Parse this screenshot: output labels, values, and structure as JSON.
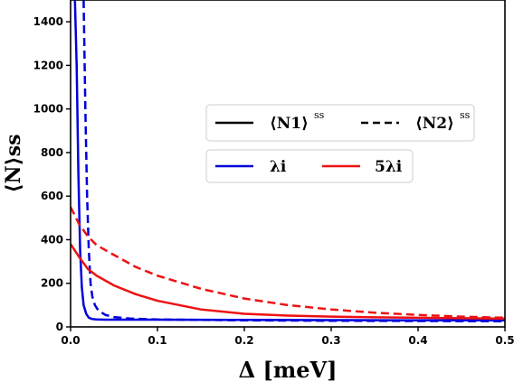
{
  "chart_data": {
    "type": "line",
    "title": "",
    "xlabel": "Δ [meV]",
    "ylabel": "⟨N⟩ss",
    "xlim": [
      0,
      0.5
    ],
    "ylim": [
      0,
      1500
    ],
    "xticks": [
      "0.0",
      "0.1",
      "0.2",
      "0.3",
      "0.4",
      "0.5"
    ],
    "yticks": [
      "0",
      "200",
      "400",
      "600",
      "800",
      "1000",
      "1200",
      "1400"
    ],
    "grid": false,
    "legend_placement": "center-right",
    "legend_style_box": {
      "entries": [
        {
          "label": "⟨N1⟩",
          "sup": "ss",
          "style": "solid"
        },
        {
          "label": "⟨N2⟩",
          "sup": "ss",
          "style": "dashed"
        }
      ]
    },
    "legend_color_box": {
      "entries": [
        {
          "label": "λi",
          "color": "#0000dd"
        },
        {
          "label": "5λi",
          "color": "#ee1111"
        }
      ]
    },
    "series": [
      {
        "quantity": "N1",
        "rate": "λi",
        "color": "#0000dd",
        "dash": "solid",
        "x": [
          0.005,
          0.007,
          0.009,
          0.011,
          0.013,
          0.015,
          0.018,
          0.021,
          0.025,
          0.03,
          0.04,
          0.05,
          0.1,
          0.2,
          0.3,
          0.4,
          0.5
        ],
        "y": [
          1500,
          1200,
          700,
          350,
          180,
          100,
          60,
          42,
          36,
          34,
          33,
          33,
          33,
          32,
          31,
          30,
          30
        ]
      },
      {
        "quantity": "N2",
        "rate": "λi",
        "color": "#0000dd",
        "dash": "dashed",
        "x": [
          0.015,
          0.017,
          0.019,
          0.021,
          0.023,
          0.025,
          0.028,
          0.032,
          0.04,
          0.05,
          0.07,
          0.1,
          0.2,
          0.3,
          0.4,
          0.5
        ],
        "y": [
          1500,
          1000,
          600,
          350,
          200,
          140,
          100,
          75,
          55,
          45,
          38,
          34,
          30,
          28,
          27,
          26
        ]
      },
      {
        "quantity": "N1",
        "rate": "5λi",
        "color": "#ee1111",
        "dash": "solid",
        "x": [
          0,
          0.01,
          0.02,
          0.03,
          0.05,
          0.075,
          0.1,
          0.15,
          0.2,
          0.25,
          0.3,
          0.35,
          0.4,
          0.45,
          0.5
        ],
        "y": [
          380,
          320,
          265,
          235,
          190,
          150,
          120,
          80,
          60,
          52,
          47,
          44,
          42,
          40,
          38
        ]
      },
      {
        "quantity": "N2",
        "rate": "5λi",
        "color": "#ee1111",
        "dash": "dashed",
        "x": [
          0,
          0.01,
          0.02,
          0.03,
          0.05,
          0.075,
          0.1,
          0.15,
          0.2,
          0.25,
          0.3,
          0.35,
          0.4,
          0.45,
          0.5
        ],
        "y": [
          550,
          470,
          415,
          375,
          330,
          275,
          235,
          175,
          130,
          100,
          80,
          65,
          55,
          47,
          42
        ]
      }
    ]
  }
}
